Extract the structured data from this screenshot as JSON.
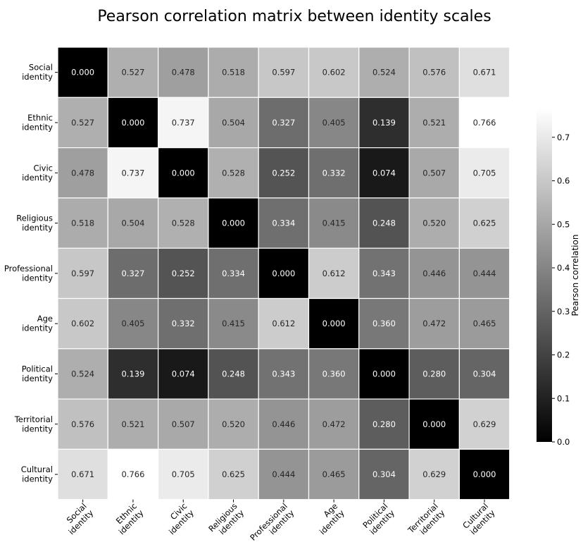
{
  "chart_data": {
    "type": "heatmap",
    "title": "Pearson correlation matrix between identity scales",
    "row_labels": [
      [
        "Social",
        "identity"
      ],
      [
        "Ethnic",
        "identity"
      ],
      [
        "Civic",
        "identity"
      ],
      [
        "Religious",
        "identity"
      ],
      [
        "Professional",
        "identity"
      ],
      [
        "Age",
        "identity"
      ],
      [
        "Political",
        "identity"
      ],
      [
        "Territorial",
        "identity"
      ],
      [
        "Cultural",
        "identity"
      ]
    ],
    "col_labels": [
      [
        "Social",
        "identity"
      ],
      [
        "Ethnic",
        "identity"
      ],
      [
        "Civic",
        "identity"
      ],
      [
        "Religious",
        "identity"
      ],
      [
        "Professional",
        "identity"
      ],
      [
        "Age",
        "identity"
      ],
      [
        "Political",
        "identity"
      ],
      [
        "Territorial",
        "identity"
      ],
      [
        "Cultural",
        "identity"
      ]
    ],
    "values": [
      [
        0.0,
        0.527,
        0.478,
        0.518,
        0.597,
        0.602,
        0.524,
        0.576,
        0.671
      ],
      [
        0.527,
        0.0,
        0.737,
        0.504,
        0.327,
        0.405,
        0.139,
        0.521,
        0.766
      ],
      [
        0.478,
        0.737,
        0.0,
        0.528,
        0.252,
        0.332,
        0.074,
        0.507,
        0.705
      ],
      [
        0.518,
        0.504,
        0.528,
        0.0,
        0.334,
        0.415,
        0.248,
        0.52,
        0.625
      ],
      [
        0.597,
        0.327,
        0.252,
        0.334,
        0.0,
        0.612,
        0.343,
        0.446,
        0.444
      ],
      [
        0.602,
        0.405,
        0.332,
        0.415,
        0.612,
        0.0,
        0.36,
        0.472,
        0.465
      ],
      [
        0.524,
        0.139,
        0.074,
        0.248,
        0.343,
        0.36,
        0.0,
        0.28,
        0.304
      ],
      [
        0.576,
        0.521,
        0.507,
        0.52,
        0.446,
        0.472,
        0.28,
        0.0,
        0.629
      ],
      [
        0.671,
        0.766,
        0.705,
        0.625,
        0.444,
        0.465,
        0.304,
        0.629,
        0.0
      ]
    ],
    "value_format": "0.000",
    "colormap": "gray",
    "vmin": 0.0,
    "vmax": 0.766,
    "colorbar": {
      "label": "Pearson correlation",
      "ticks": [
        "0.0",
        "0.1",
        "0.2",
        "0.3",
        "0.4",
        "0.5",
        "0.6",
        "0.7"
      ],
      "placement": "right"
    },
    "grid": false
  }
}
